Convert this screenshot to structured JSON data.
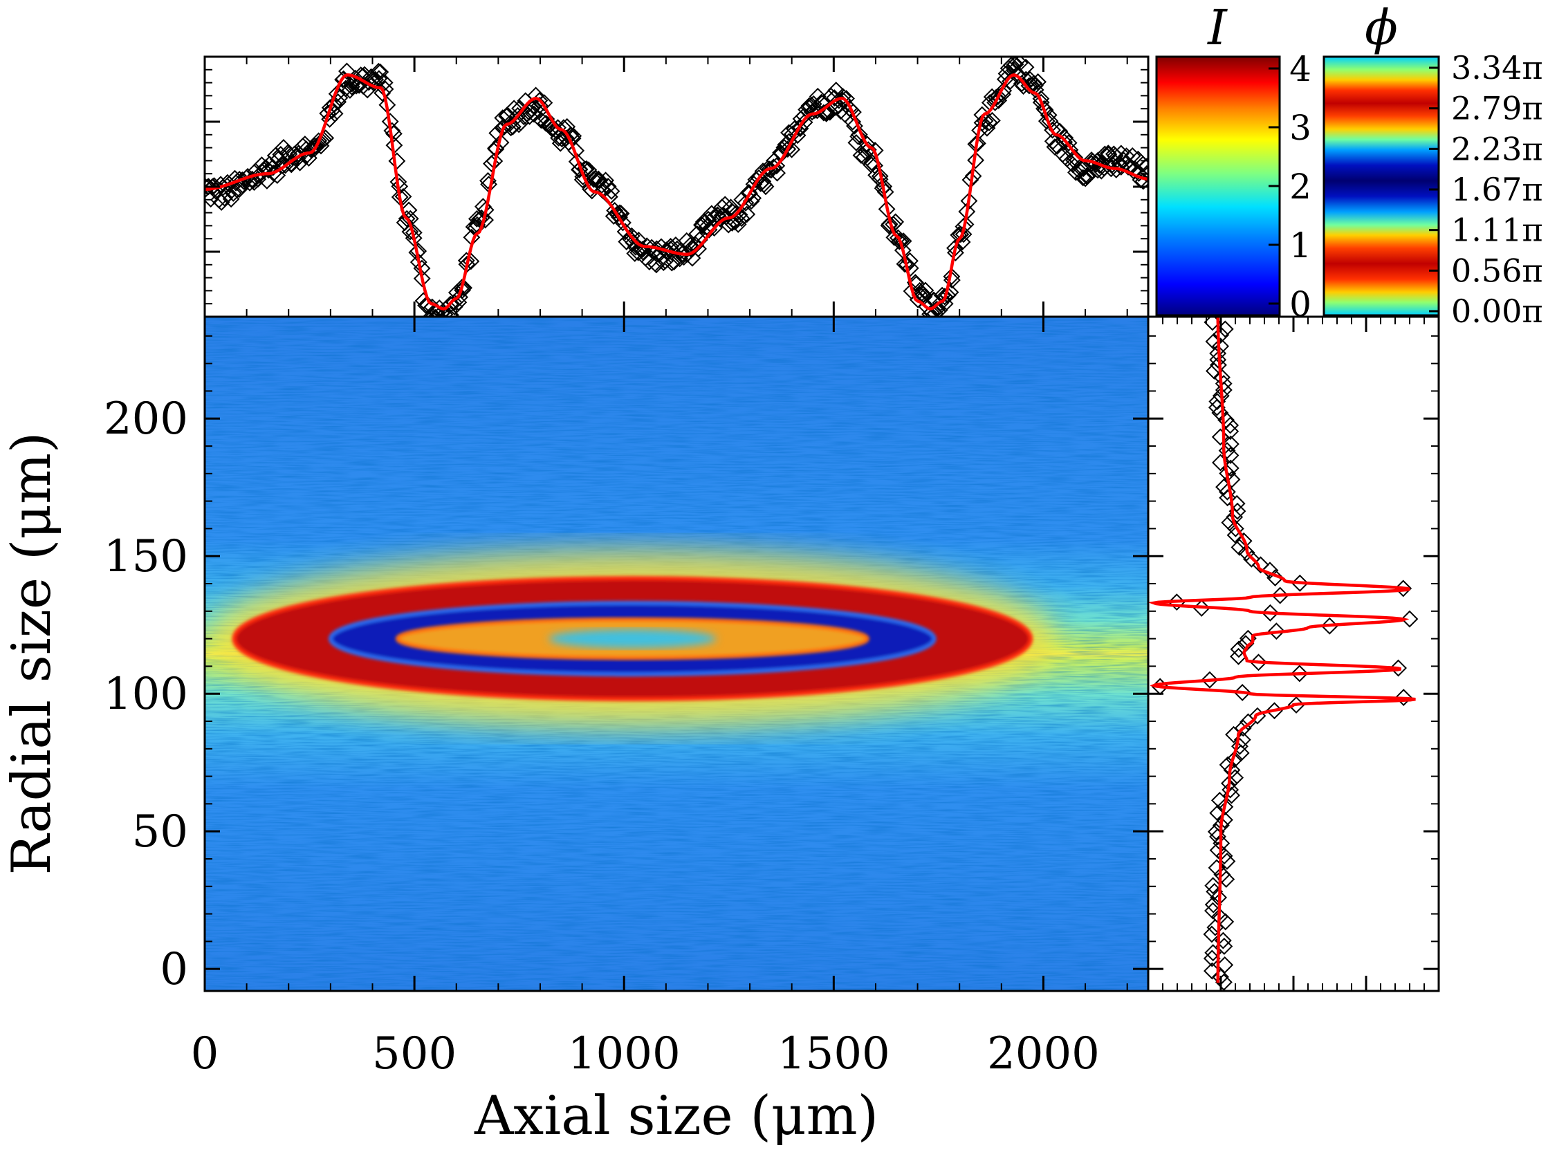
{
  "chart_data": [
    {
      "type": "heatmap",
      "xlabel": "Axial size (μm)",
      "ylabel": "Radial size (μm)",
      "xlim": [
        0,
        2250
      ],
      "ylim": [
        -8,
        237
      ],
      "xticks": [
        0,
        500,
        1000,
        1500,
        2000
      ],
      "xtick_labels": [
        "0",
        "500",
        "1000",
        "1500",
        "2000"
      ],
      "yticks": [
        0,
        50,
        100,
        150,
        200
      ],
      "ytick_labels": [
        "0",
        "50",
        "100",
        "150",
        "200"
      ],
      "center": {
        "x": 1020,
        "y": 120
      },
      "rings": [
        {
          "label": "outer-red",
          "semi_axis_x": 950,
          "semi_axis_y": 22
        },
        {
          "label": "blue",
          "semi_axis_x": 720,
          "semi_axis_y": 13
        },
        {
          "label": "inner-red",
          "semi_axis_x": 560,
          "semi_axis_y": 7
        }
      ],
      "background_width": 40
    },
    {
      "type": "line",
      "panel": "axial-profile",
      "xlim": [
        0,
        2250
      ],
      "ylim": [
        0,
        1
      ],
      "fit_x": [
        0,
        150,
        250,
        340,
        420,
        480,
        540,
        570,
        600,
        650,
        720,
        790,
        850,
        930,
        1050,
        1150,
        1250,
        1350,
        1450,
        1520,
        1590,
        1650,
        1700,
        1730,
        1760,
        1800,
        1860,
        1930,
        1980,
        2030,
        2100,
        2170,
        2250
      ],
      "fit_y": [
        0.49,
        0.55,
        0.63,
        0.93,
        0.88,
        0.38,
        0.05,
        0.03,
        0.07,
        0.32,
        0.74,
        0.84,
        0.72,
        0.48,
        0.27,
        0.24,
        0.38,
        0.57,
        0.78,
        0.84,
        0.65,
        0.31,
        0.06,
        0.03,
        0.06,
        0.3,
        0.78,
        0.93,
        0.86,
        0.7,
        0.6,
        0.57,
        0.53
      ]
    },
    {
      "type": "line",
      "panel": "radial-profile",
      "xlim": [
        0,
        1
      ],
      "ylim": [
        -8,
        237
      ],
      "fit_y": [
        -5,
        50,
        70,
        85,
        92,
        96,
        98,
        100,
        103,
        106,
        109,
        112,
        115,
        117,
        119,
        121,
        124,
        127,
        130,
        133,
        135,
        138,
        141,
        146,
        152,
        165,
        190,
        237
      ],
      "fit_x": [
        0.24,
        0.25,
        0.28,
        0.31,
        0.37,
        0.5,
        0.92,
        0.35,
        0.02,
        0.3,
        0.87,
        0.34,
        0.33,
        0.34,
        0.36,
        0.36,
        0.55,
        0.88,
        0.35,
        0.02,
        0.35,
        0.9,
        0.47,
        0.38,
        0.34,
        0.29,
        0.26,
        0.24
      ]
    },
    {
      "type": "heatmap",
      "panel": "colorbar-I",
      "title": "I",
      "ticks": [
        "4",
        "3",
        "2",
        "1",
        "0"
      ],
      "range": [
        -0.2,
        4.2
      ]
    },
    {
      "type": "heatmap",
      "panel": "colorbar-phi",
      "title": "ϕ",
      "ticks": [
        "3.34π",
        "2.79π",
        "2.23π",
        "1.67π",
        "1.11π",
        "0.56π",
        "0.00π"
      ]
    }
  ],
  "colors": {
    "fit": "#ff0000",
    "markers": "#000000"
  }
}
